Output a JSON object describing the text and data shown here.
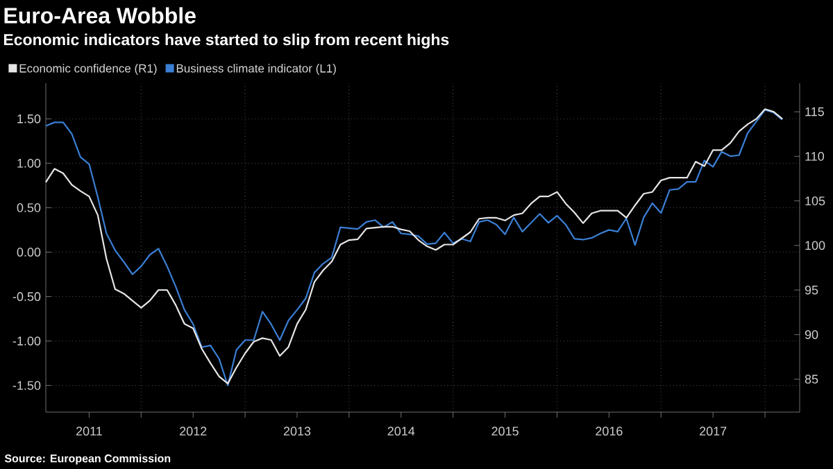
{
  "chart_data": {
    "type": "line",
    "title": "Euro-Area Wobble",
    "subtitle": "Economic indicators have started to slip from recent highs",
    "annotations": [
      "Source: European Commission"
    ],
    "x": [
      "2011-02",
      "2011-03",
      "2011-04",
      "2011-05",
      "2011-06",
      "2011-07",
      "2011-08",
      "2011-09",
      "2011-10",
      "2011-11",
      "2011-12",
      "2012-01",
      "2012-02",
      "2012-03",
      "2012-04",
      "2012-05",
      "2012-06",
      "2012-07",
      "2012-08",
      "2012-09",
      "2012-10",
      "2012-11",
      "2012-12",
      "2013-01",
      "2013-02",
      "2013-03",
      "2013-04",
      "2013-05",
      "2013-06",
      "2013-07",
      "2013-08",
      "2013-09",
      "2013-10",
      "2013-11",
      "2013-12",
      "2014-01",
      "2014-02",
      "2014-03",
      "2014-04",
      "2014-05",
      "2014-06",
      "2014-07",
      "2014-08",
      "2014-09",
      "2014-10",
      "2014-11",
      "2014-12",
      "2015-01",
      "2015-02",
      "2015-03",
      "2015-04",
      "2015-05",
      "2015-06",
      "2015-07",
      "2015-08",
      "2015-09",
      "2015-10",
      "2015-11",
      "2015-12",
      "2016-01",
      "2016-02",
      "2016-03",
      "2016-04",
      "2016-05",
      "2016-06",
      "2016-07",
      "2016-08",
      "2016-09",
      "2016-10",
      "2016-11",
      "2016-12",
      "2017-01",
      "2017-02",
      "2017-03",
      "2017-04",
      "2017-05",
      "2017-06",
      "2017-07",
      "2017-08",
      "2017-09",
      "2017-10",
      "2017-11",
      "2017-12",
      "2018-01",
      "2018-02",
      "2018-03"
    ],
    "series": [
      {
        "name": "Economic confidence (R1)",
        "color": "#e6e6e6",
        "axis": "y2",
        "values": [
          107.1,
          108.6,
          108.1,
          106.8,
          106.1,
          105.5,
          103.4,
          98.5,
          95.1,
          94.6,
          93.8,
          93.0,
          93.8,
          95.0,
          95.0,
          93.3,
          91.2,
          90.7,
          88.4,
          86.8,
          85.3,
          84.5,
          86.3,
          87.9,
          89.2,
          89.6,
          89.4,
          87.6,
          88.6,
          91.2,
          92.8,
          95.9,
          97.2,
          98.2,
          100.1,
          100.6,
          100.7,
          101.9,
          102.0,
          102.1,
          102.1,
          101.8,
          101.6,
          100.6,
          99.9,
          99.5,
          100.1,
          100.1,
          100.8,
          101.5,
          103.0,
          103.1,
          103.1,
          102.8,
          103.4,
          103.6,
          104.7,
          105.5,
          105.5,
          106.0,
          104.7,
          103.7,
          102.5,
          103.6,
          103.9,
          103.9,
          103.9,
          103.1,
          104.5,
          105.8,
          106.0,
          107.3,
          107.6,
          107.6,
          107.6,
          109.4,
          108.9,
          110.7,
          110.7,
          111.5,
          112.8,
          113.6,
          114.2,
          115.3,
          115.0,
          114.2
        ]
      },
      {
        "name": "Business climate indicator (L1)",
        "color": "#3a7fd5",
        "values": [
          1.42,
          1.46,
          1.46,
          1.33,
          1.07,
          0.99,
          0.62,
          0.21,
          0.02,
          -0.11,
          -0.25,
          -0.16,
          -0.03,
          0.04,
          -0.16,
          -0.39,
          -0.65,
          -0.81,
          -1.07,
          -1.05,
          -1.2,
          -1.5,
          -1.1,
          -0.99,
          -0.99,
          -0.67,
          -0.81,
          -0.99,
          -0.77,
          -0.65,
          -0.52,
          -0.23,
          -0.13,
          -0.06,
          0.28,
          0.27,
          0.26,
          0.34,
          0.36,
          0.28,
          0.34,
          0.21,
          0.2,
          0.18,
          0.09,
          0.1,
          0.22,
          0.1,
          0.15,
          0.12,
          0.34,
          0.36,
          0.31,
          0.2,
          0.39,
          0.23,
          0.33,
          0.43,
          0.33,
          0.41,
          0.31,
          0.15,
          0.14,
          0.16,
          0.21,
          0.25,
          0.23,
          0.38,
          0.08,
          0.39,
          0.55,
          0.44,
          0.7,
          0.71,
          0.79,
          0.79,
          1.03,
          0.96,
          1.13,
          1.08,
          1.09,
          1.34,
          1.47,
          1.6,
          1.57,
          1.49
        ]
      }
    ],
    "xlim": [
      "2011-02",
      "2018-05"
    ],
    "xticks": [
      {
        "value": "2012-01",
        "label": null
      },
      {
        "value": "2013-01",
        "label": null
      },
      {
        "value": "2014-01",
        "label": null
      },
      {
        "value": "2015-01",
        "label": null
      },
      {
        "value": "2016-01",
        "label": null
      },
      {
        "value": "2017-01",
        "label": null
      },
      {
        "value": "2018-01",
        "label": null
      },
      {
        "value": "2011-07",
        "label": "2011"
      },
      {
        "value": "2012-07",
        "label": "2012"
      },
      {
        "value": "2013-07",
        "label": "2013"
      },
      {
        "value": "2014-07",
        "label": "2014"
      },
      {
        "value": "2015-07",
        "label": "2015"
      },
      {
        "value": "2016-07",
        "label": "2016"
      },
      {
        "value": "2017-07",
        "label": "2017"
      }
    ],
    "ylim": [
      -1.8,
      1.9
    ],
    "yticks": [
      {
        "value": -1.5,
        "label": "-1.50"
      },
      {
        "value": -1,
        "label": "-1.00"
      },
      {
        "value": -0.5,
        "label": "-0.50"
      },
      {
        "value": 0,
        "label": "0.00"
      },
      {
        "value": 0.5,
        "label": "0.50"
      },
      {
        "value": 1,
        "label": "1.00"
      },
      {
        "value": 1.5,
        "label": "1.50"
      }
    ],
    "y2lim": [
      81.3,
      118.2
    ],
    "y2ticks": [
      85,
      90,
      95,
      100,
      105,
      110,
      115
    ],
    "grid": true,
    "legend": "top left"
  }
}
